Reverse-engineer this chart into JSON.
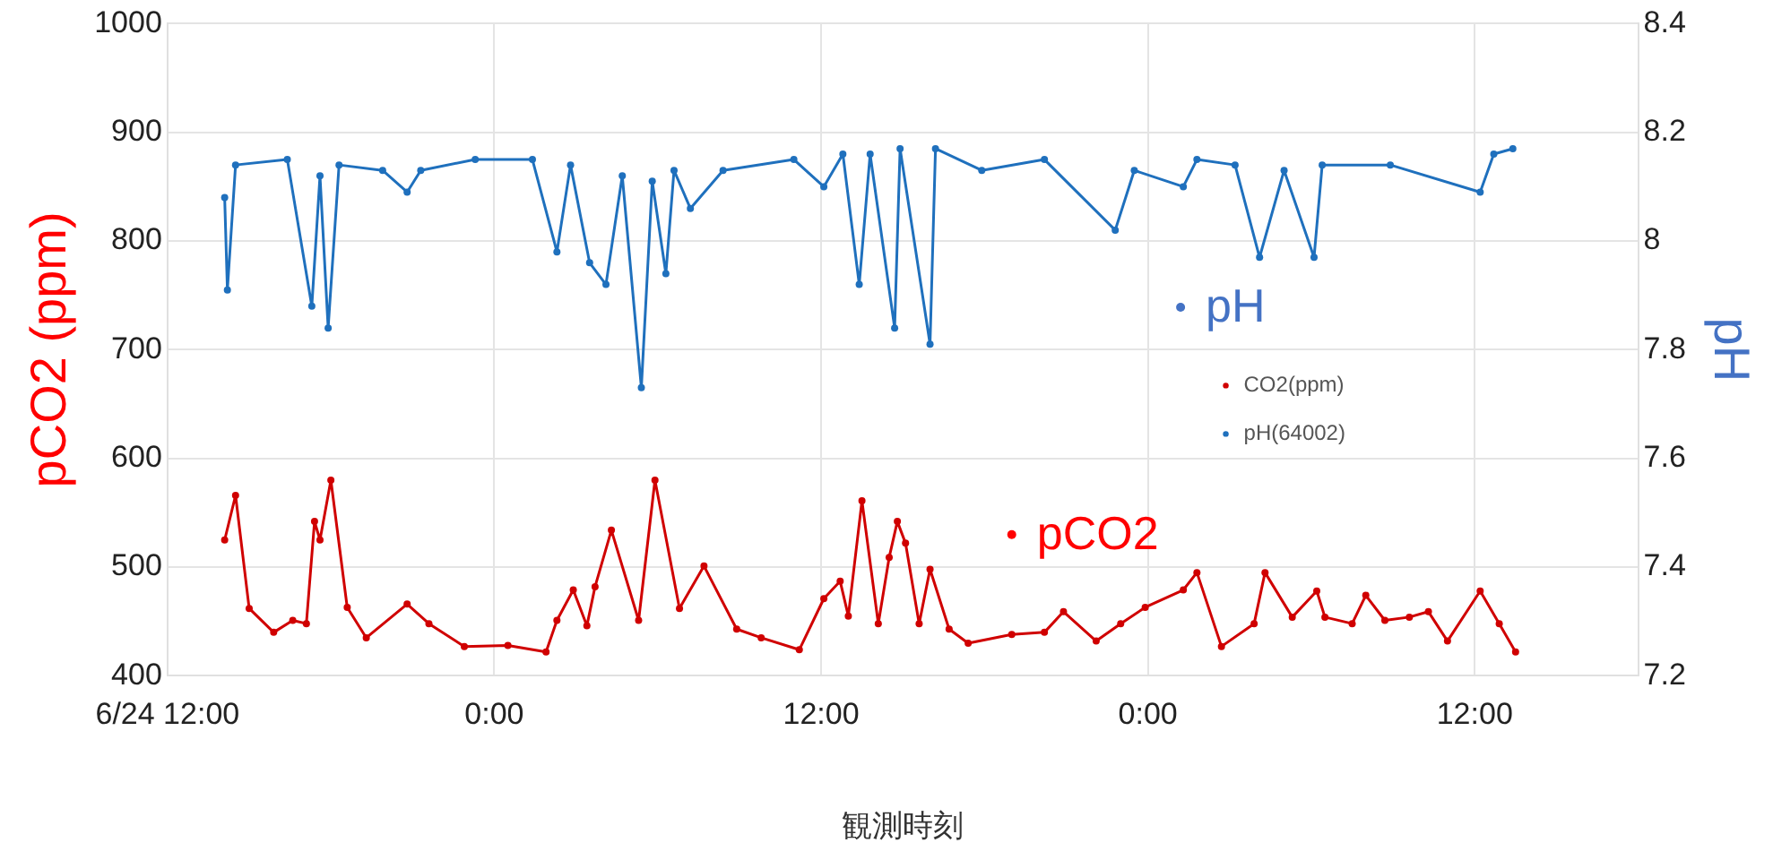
{
  "chart_data": {
    "type": "line",
    "xlabel": "観測時刻",
    "ylabel": "pCO2 (ppm)",
    "y2label": "pH",
    "x": [
      "--06-24T14:06",
      "--06-24T14:30",
      "--06-24T15:00",
      "--06-24T15:54",
      "--06-24T16:36",
      "--06-24T17:06",
      "--06-24T17:24",
      "--06-24T17:36",
      "--06-24T18:00",
      "--06-24T18:36",
      "--06-24T19:18",
      "--06-24T20:48",
      "--06-24T21:36",
      "--06-24T22:54",
      "--06-25T00:30",
      "--06-25T01:54",
      "--06-25T02:18",
      "--06-25T02:54",
      "--06-25T03:24",
      "--06-25T03:42",
      "--06-25T04:18",
      "--06-25T05:18",
      "--06-25T05:54",
      "--06-25T06:48",
      "--06-25T07:42",
      "--06-25T08:54",
      "--06-25T09:48",
      "--06-25T11:12",
      "--06-25T12:06",
      "--06-25T12:42",
      "--06-25T13:00",
      "--06-25T13:30",
      "--06-25T14:06",
      "--06-25T14:30",
      "--06-25T14:48",
      "--06-25T15:06",
      "--06-25T15:36",
      "--06-25T16:00",
      "--06-25T16:42",
      "--06-25T17:24",
      "--06-25T19:00",
      "--06-25T20:12",
      "--06-25T20:54",
      "--06-25T22:06",
      "--06-25T23:00",
      "--06-25T23:54",
      "--06-26T01:18",
      "--06-26T01:48",
      "--06-26T02:42",
      "--06-26T03:54",
      "--06-26T04:18",
      "--06-26T05:18",
      "--06-26T06:12",
      "--06-26T06:30",
      "--06-26T07:30",
      "--06-26T08:00",
      "--06-26T08:42",
      "--06-26T09:36",
      "--06-26T10:18",
      "--06-26T11:00",
      "--06-26T12:12",
      "--06-26T12:54",
      "--06-26T13:30"
    ],
    "series": [
      {
        "name": "CO2(ppm)",
        "color": "#d00000",
        "values": [
          525,
          566,
          462,
          440,
          451,
          448,
          542,
          525,
          580,
          463,
          435,
          466,
          448,
          427,
          428,
          422,
          451,
          479,
          446,
          482,
          534,
          451,
          580,
          462,
          501,
          443,
          435,
          424,
          471,
          487,
          455,
          561,
          448,
          509,
          542,
          522,
          448,
          498,
          443,
          430,
          438,
          440,
          459,
          432,
          448,
          463,
          479,
          495,
          427,
          448,
          495,
          454,
          478,
          454,
          448,
          474,
          451,
          454,
          459,
          432,
          478,
          448,
          422
        ]
      },
      {
        "name": "pH(64002)",
        "color": "#1f70bd",
        "axis": "y2",
        "x": [
          "--06-24T14:06",
          "--06-24T14:12",
          "--06-24T14:30",
          "--06-24T16:24",
          "--06-24T17:18",
          "--06-24T17:36",
          "--06-24T17:54",
          "--06-24T18:18",
          "--06-24T19:54",
          "--06-24T20:48",
          "--06-24T21:18",
          "--06-24T23:18",
          "--06-25T01:24",
          "--06-25T02:18",
          "--06-25T02:48",
          "--06-25T03:30",
          "--06-25T04:06",
          "--06-25T04:42",
          "--06-25T05:24",
          "--06-25T05:48",
          "--06-25T06:18",
          "--06-25T06:36",
          "--06-25T07:12",
          "--06-25T08:24",
          "--06-25T11:00",
          "--06-25T12:06",
          "--06-25T12:48",
          "--06-25T13:24",
          "--06-25T13:48",
          "--06-25T14:42",
          "--06-25T14:54",
          "--06-25T16:00",
          "--06-25T16:12",
          "--06-25T17:54",
          "--06-25T20:12",
          "--06-25T22:48",
          "--06-25T23:30",
          "--06-26T01:18",
          "--06-26T01:48",
          "--06-26T03:12",
          "--06-26T04:06",
          "--06-26T05:00",
          "--06-26T06:06",
          "--06-26T06:24",
          "--06-26T08:54",
          "--06-26T12:12",
          "--06-26T12:42",
          "--06-26T13:24"
        ],
        "values": [
          8.08,
          7.91,
          8.14,
          8.15,
          7.88,
          8.12,
          7.84,
          8.14,
          8.13,
          8.09,
          8.13,
          8.15,
          8.15,
          7.98,
          8.14,
          7.96,
          7.92,
          8.12,
          7.73,
          8.11,
          7.94,
          8.13,
          8.06,
          8.13,
          8.15,
          8.1,
          8.16,
          7.92,
          8.16,
          7.84,
          8.17,
          7.81,
          8.17,
          8.13,
          8.15,
          8.02,
          8.13,
          8.1,
          8.15,
          8.14,
          7.97,
          8.13,
          7.97,
          8.14,
          8.14,
          8.09,
          8.16,
          8.17
        ]
      }
    ],
    "xlim": [
      "--06-24T12:00",
      "--06-26T18:00"
    ],
    "xticks": [
      {
        "value": "--06-24T12:00",
        "label": "6/24 12:00"
      },
      {
        "value": "--06-25T00:00",
        "label": "0:00"
      },
      {
        "value": "--06-25T12:00",
        "label": "12:00"
      },
      {
        "value": "--06-26T00:00",
        "label": "0:00"
      },
      {
        "value": "--06-26T12:00",
        "label": "12:00"
      }
    ],
    "ylim": [
      400,
      1000
    ],
    "yticks": [
      400,
      500,
      600,
      700,
      800,
      900,
      1000
    ],
    "y2lim": [
      7.2,
      8.4
    ],
    "y2ticks": [
      7.2,
      7.4,
      7.6,
      7.8,
      8.0,
      8.2,
      8.4
    ],
    "annotations": [
      {
        "text": "pCO2",
        "x": "--06-25T19:00",
        "y": 530
      },
      {
        "text": "pH",
        "x": "--06-26T01:12",
        "y": 739
      }
    ],
    "grid": true,
    "legend": "right",
    "marker": "circle",
    "line_style": "solid"
  }
}
